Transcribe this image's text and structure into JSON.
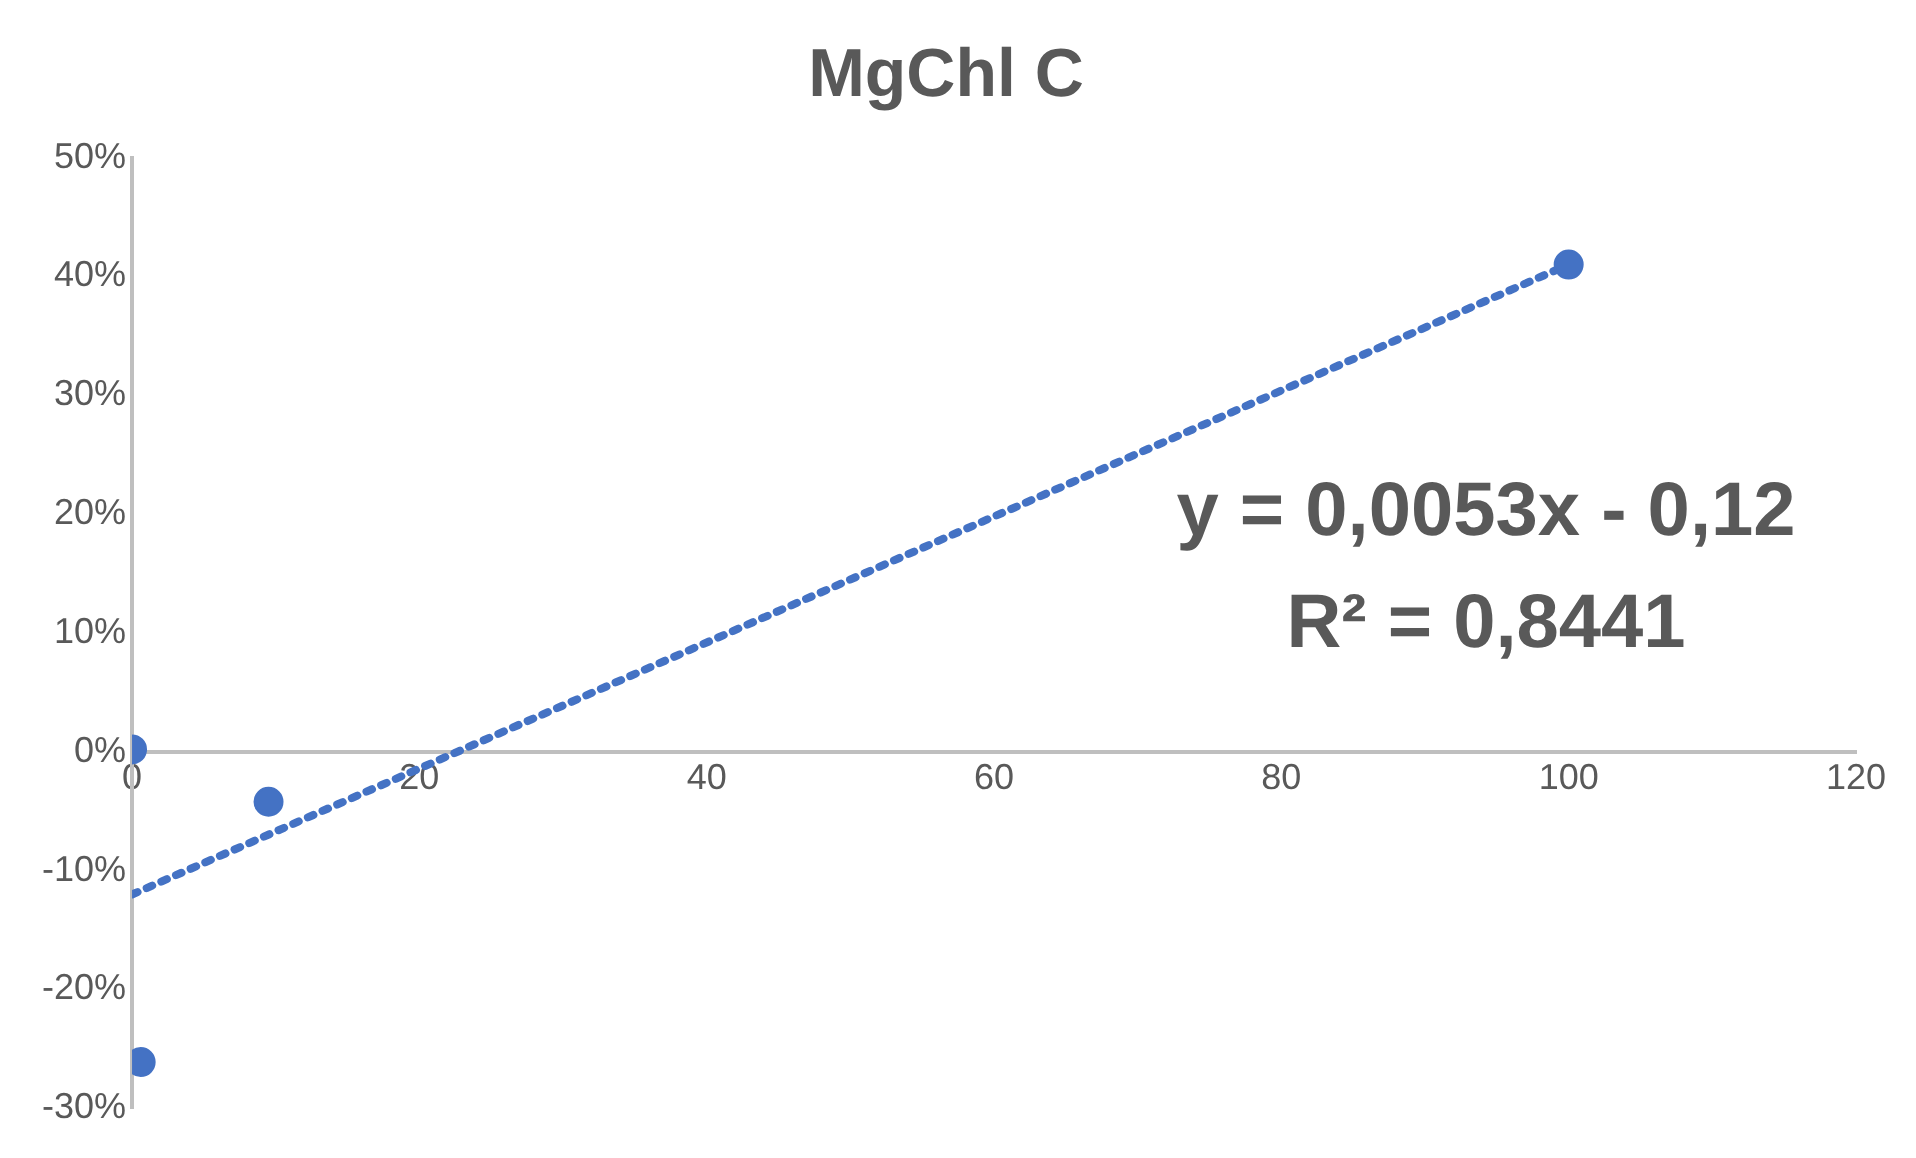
{
  "chart_data": {
    "type": "scatter",
    "title": "MgChl C",
    "xlim": [
      0,
      120
    ],
    "xticks": [
      0,
      20,
      40,
      60,
      80,
      100,
      120
    ],
    "ylim": [
      -0.3,
      0.5
    ],
    "yticks": [
      {
        "value": -0.3,
        "label": "-30%"
      },
      {
        "value": -0.2,
        "label": "-20%"
      },
      {
        "value": -0.1,
        "label": "-10%"
      },
      {
        "value": 0,
        "label": "0%"
      },
      {
        "value": 0.1,
        "label": "10%"
      },
      {
        "value": 0.2,
        "label": "20%"
      },
      {
        "value": 0.3,
        "label": "30%"
      },
      {
        "value": 0.4,
        "label": "40%"
      },
      {
        "value": 0.5,
        "label": "50%"
      }
    ],
    "grid": false,
    "legend": false,
    "marker": "circle",
    "series": [
      {
        "color": "#4472c4",
        "x": [
          0,
          9.5,
          0.6,
          100
        ],
        "values": [
          0.002,
          -0.042,
          -0.261,
          0.41
        ]
      },
      {
        "type": "line",
        "color": "#4472c4",
        "line_style": "dotted",
        "marker": "none",
        "x": [
          0,
          100
        ],
        "values": [
          -0.12,
          0.41
        ]
      }
    ],
    "annotations": [
      "y = 0,0053x - 0,12",
      "R² = 0,8441"
    ]
  }
}
